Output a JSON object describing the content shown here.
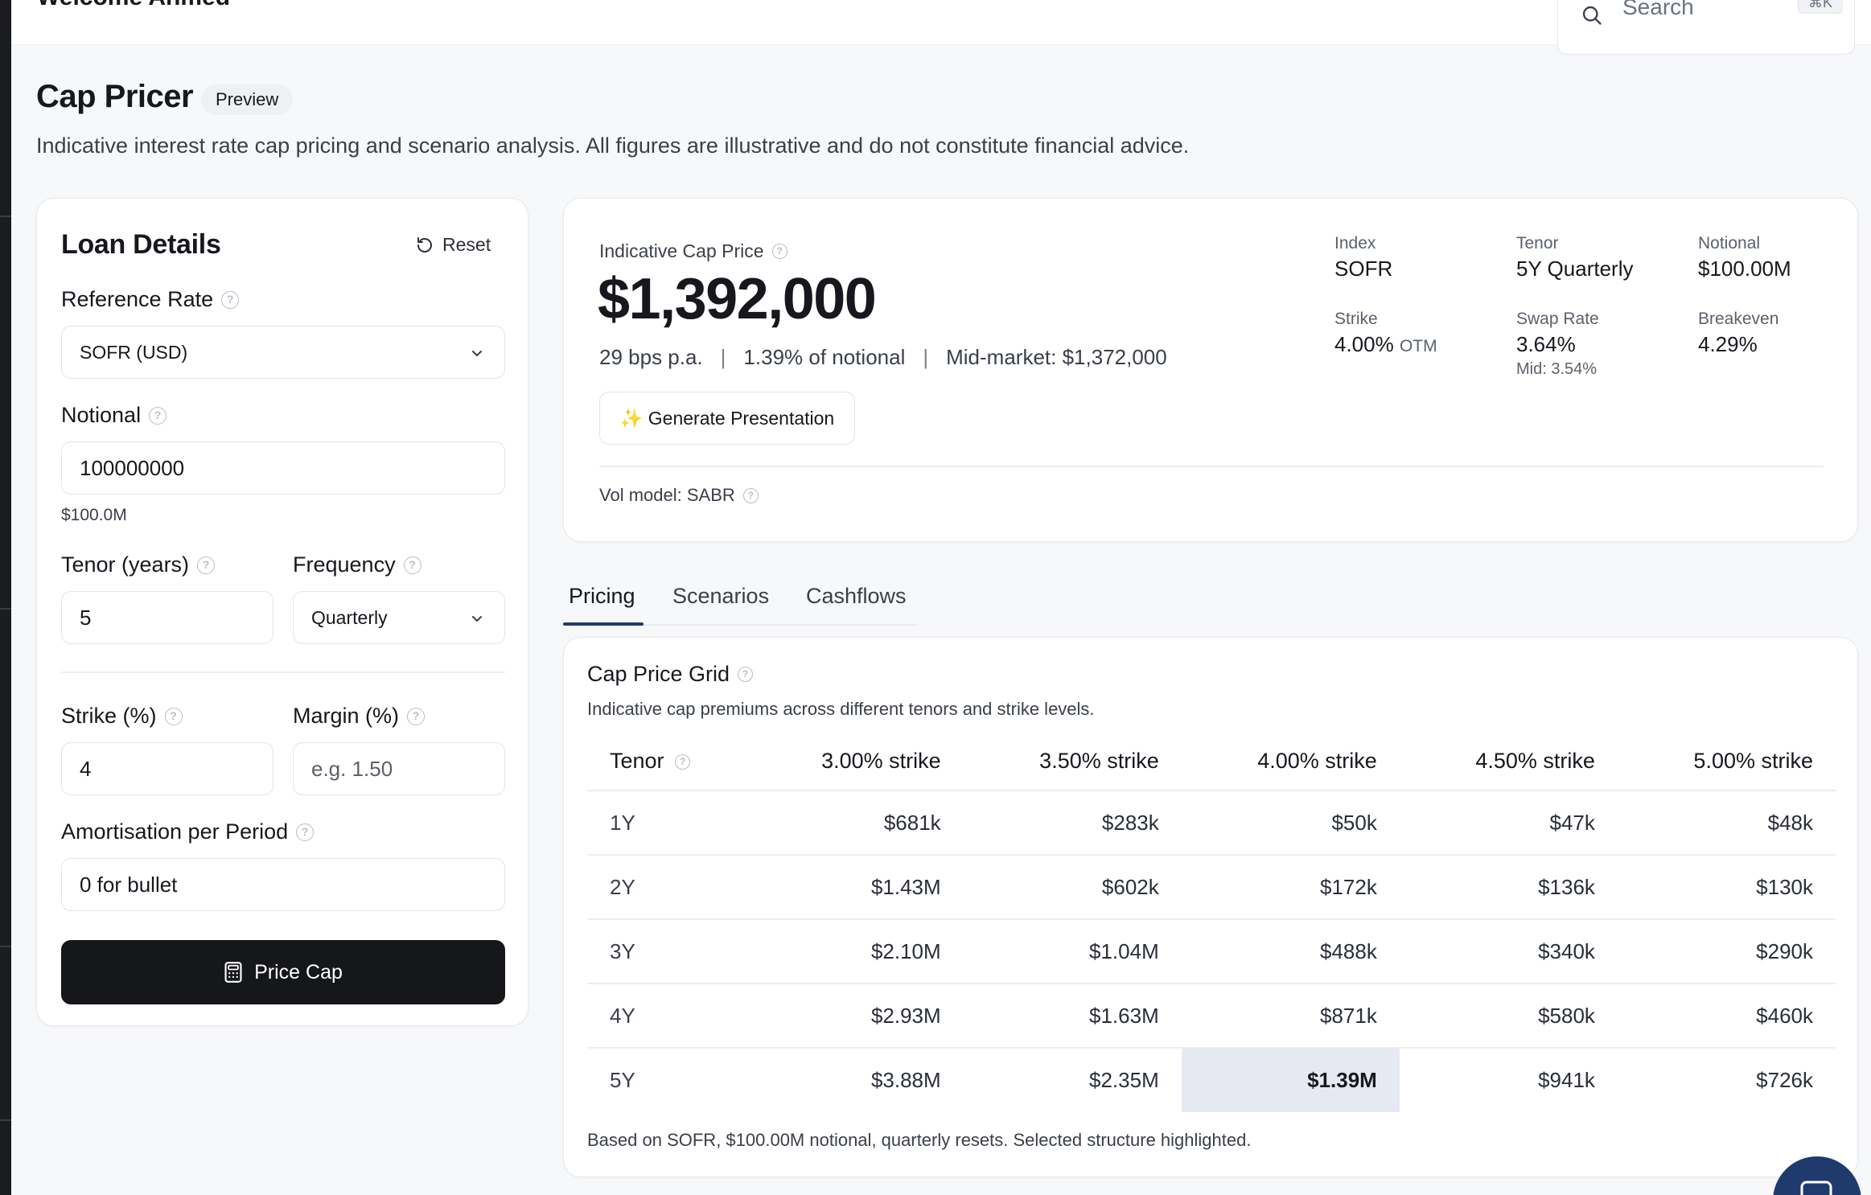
{
  "topbar": {
    "welcome": "Welcome Ahmed",
    "search_placeholder": "Search",
    "shortcut": "⌘K"
  },
  "header": {
    "title": "Cap Pricer",
    "badge": "Preview",
    "subtitle": "Indicative interest rate cap pricing and scenario analysis. All figures are illustrative and do not constitute financial advice."
  },
  "loan": {
    "title": "Loan Details",
    "reset_label": "Reset",
    "reference_rate_label": "Reference Rate",
    "reference_rate_value": "SOFR (USD)",
    "notional_label": "Notional",
    "notional_value": "100000000",
    "notional_hint": "$100.0M",
    "tenor_label": "Tenor (years)",
    "tenor_value": "5",
    "frequency_label": "Frequency",
    "frequency_value": "Quarterly",
    "strike_label": "Strike (%)",
    "strike_value": "4",
    "margin_label": "Margin (%)",
    "margin_placeholder": "e.g. 1.50",
    "amort_label": "Amortisation per Period",
    "amort_placeholder": "0 for bullet",
    "price_button": "Price Cap"
  },
  "summary": {
    "label": "Indicative Cap Price",
    "price": "$1,392,000",
    "bps": "29 bps p.a.",
    "pct_notional": "1.39% of notional",
    "mid_market": "Mid-market: $1,372,000",
    "generate_button": "✨ Generate Presentation",
    "vol_model": "Vol model: SABR",
    "stats": {
      "index_label": "Index",
      "index_value": "SOFR",
      "tenor_label": "Tenor",
      "tenor_value": "5Y Quarterly",
      "notional_label": "Notional",
      "notional_value": "$100.00M",
      "strike_label": "Strike",
      "strike_value": "4.00%",
      "strike_note": "OTM",
      "swap_label": "Swap Rate",
      "swap_value": "3.64%",
      "swap_mid": "Mid: 3.54%",
      "breakeven_label": "Breakeven",
      "breakeven_value": "4.29%"
    }
  },
  "tabs": [
    "Pricing",
    "Scenarios",
    "Cashflows"
  ],
  "grid": {
    "title": "Cap Price Grid",
    "description": "Indicative cap premiums across different tenors and strike levels.",
    "columns": [
      "Tenor",
      "3.00% strike",
      "3.50% strike",
      "4.00% strike",
      "4.50% strike",
      "5.00% strike"
    ],
    "rows": [
      [
        "1Y",
        "$681k",
        "$283k",
        "$50k",
        "$47k",
        "$48k"
      ],
      [
        "2Y",
        "$1.43M",
        "$602k",
        "$172k",
        "$136k",
        "$130k"
      ],
      [
        "3Y",
        "$2.10M",
        "$1.04M",
        "$488k",
        "$340k",
        "$290k"
      ],
      [
        "4Y",
        "$2.93M",
        "$1.63M",
        "$871k",
        "$580k",
        "$460k"
      ],
      [
        "5Y",
        "$3.88M",
        "$2.35M",
        "$1.39M",
        "$941k",
        "$726k"
      ]
    ],
    "highlight": {
      "row": 4,
      "col": 3
    },
    "footnote": "Based on SOFR, $100.00M notional, quarterly resets. Selected structure highlighted."
  },
  "colors": {
    "accent": "#1f3b6e",
    "highlight": "#e6e9f1",
    "button": "#16171a"
  }
}
